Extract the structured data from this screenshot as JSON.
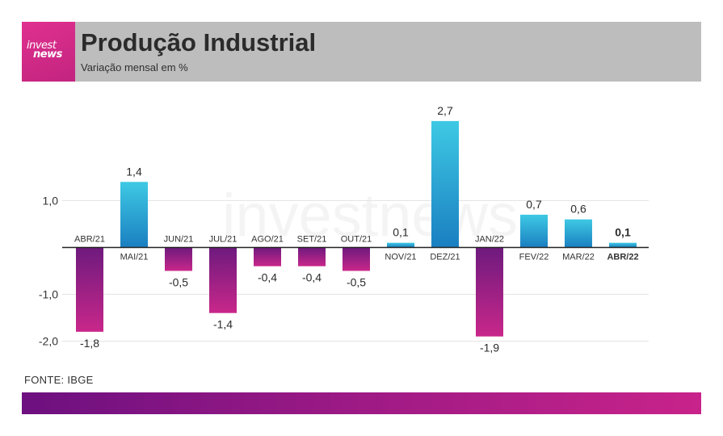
{
  "header": {
    "logo_line1": "invest",
    "logo_line2": "news",
    "title": "Produção Industrial",
    "subtitle": "Variação mensal em %"
  },
  "watermark": "investnews",
  "source": "FONTE: IBGE",
  "colors": {
    "positive_top": "#3ec9e4",
    "positive_bottom": "#1a7fc1",
    "negative_top": "#6e1a7e",
    "negative_bottom": "#c9278a",
    "header_bg": "#bdbdbd",
    "logo_bg": "#d42b88"
  },
  "chart_data": {
    "type": "bar",
    "categories": [
      "ABR/21",
      "MAI/21",
      "JUN/21",
      "JUL/21",
      "AGO/21",
      "SET/21",
      "OUT/21",
      "NOV/21",
      "DEZ/21",
      "JAN/22",
      "FEV/22",
      "MAR/22",
      "ABR/22"
    ],
    "values": [
      -1.8,
      1.4,
      -0.5,
      -1.4,
      -0.4,
      -0.4,
      -0.5,
      0.1,
      2.7,
      -1.9,
      0.7,
      0.6,
      0.1
    ],
    "value_labels": [
      "-1,8",
      "1,4",
      "-0,5",
      "-1,4",
      "-0,4",
      "-0,4",
      "-0,5",
      "0,1",
      "2,7",
      "-1,9",
      "0,7",
      "0,6",
      "0,1"
    ],
    "highlight": "ABR/22",
    "yticks": [
      1.0,
      -1.0,
      -2.0
    ],
    "ytick_labels": [
      "1,0",
      "-1,0",
      "-2,0"
    ],
    "ylim": [
      -2.0,
      2.7
    ],
    "grid": true
  }
}
